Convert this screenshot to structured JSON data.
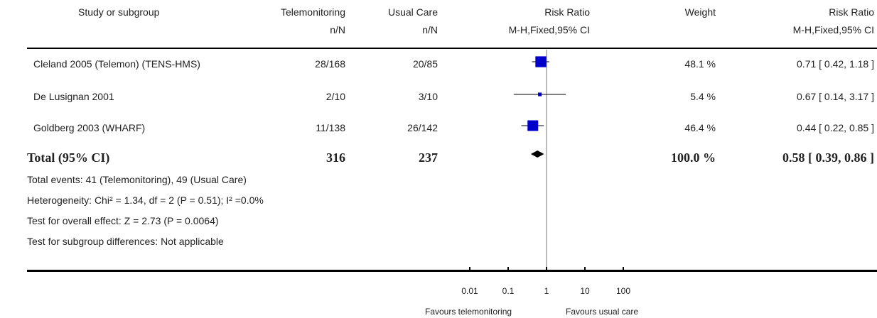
{
  "header": {
    "study": "Study or subgroup",
    "group1": "Telemonitoring",
    "group2": "Usual Care",
    "effect": "Risk Ratio",
    "weight": "Weight",
    "effect2": "Risk Ratio",
    "group1_sub": "n/N",
    "group2_sub": "n/N",
    "effect_sub": "M-H,Fixed,95% CI",
    "effect2_sub": "M-H,Fixed,95% CI"
  },
  "rows": [
    {
      "study": "Cleland 2005 (Telemon) (TENS-HMS)",
      "g1": "28/168",
      "g2": "20/85",
      "weight": "48.1 %",
      "ci": "0.71 [ 0.42, 1.18 ]"
    },
    {
      "study": "De Lusignan 2001",
      "g1": "2/10",
      "g2": "3/10",
      "weight": "5.4 %",
      "ci": "0.67 [ 0.14, 3.17 ]"
    },
    {
      "study": "Goldberg 2003 (WHARF)",
      "g1": "11/138",
      "g2": "26/142",
      "weight": "46.4 %",
      "ci": "0.44 [ 0.22, 0.85 ]"
    }
  ],
  "total": {
    "label": "Total (95% CI)",
    "g1": "316",
    "g2": "237",
    "weight": "100.0 %",
    "ci": "0.58 [ 0.39, 0.86 ]"
  },
  "footnotes": {
    "events": "Total events: 41 (Telemonitoring), 49 (Usual Care)",
    "heterogeneity": "Heterogeneity: Chi² = 1.34, df = 2 (P = 0.51); I² =0.0%",
    "overall": "Test for overall effect: Z = 2.73 (P = 0.0064)",
    "subgroup": "Test for subgroup differences: Not applicable"
  },
  "axis": {
    "ticks": [
      "0.01",
      "0.1",
      "1",
      "10",
      "100"
    ],
    "favours_left": "Favours telemonitoring",
    "favours_right": "Favours usual care"
  },
  "chart_data": {
    "type": "scatter",
    "xscale": "log",
    "xlim": [
      0.01,
      100
    ],
    "reference_line": 1,
    "studies": [
      {
        "name": "Cleland 2005 (Telemon) (TENS-HMS)",
        "rr": 0.71,
        "lower": 0.42,
        "upper": 1.18,
        "weight": 48.1
      },
      {
        "name": "De Lusignan 2001",
        "rr": 0.67,
        "lower": 0.14,
        "upper": 3.17,
        "weight": 5.4
      },
      {
        "name": "Goldberg 2003 (WHARF)",
        "rr": 0.44,
        "lower": 0.22,
        "upper": 0.85,
        "weight": 46.4
      }
    ],
    "pooled": {
      "rr": 0.58,
      "lower": 0.39,
      "upper": 0.86
    }
  },
  "colors": {
    "square": "#0000cc",
    "diamond": "#000000"
  }
}
